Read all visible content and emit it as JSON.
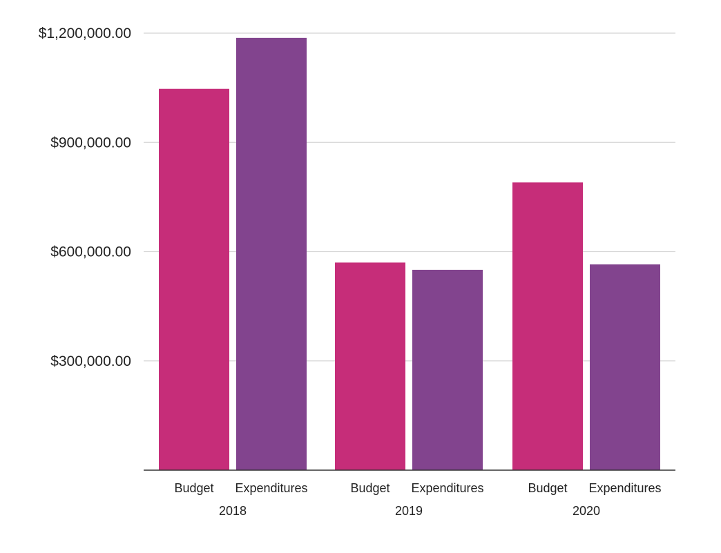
{
  "chart_data": {
    "type": "bar",
    "groups": [
      "2018",
      "2019",
      "2020"
    ],
    "categories": [
      "Budget",
      "Expenditures"
    ],
    "series": [
      {
        "group": "2018",
        "values": [
          1047000,
          1187000
        ]
      },
      {
        "group": "2019",
        "values": [
          570000,
          550000
        ]
      },
      {
        "group": "2020",
        "values": [
          790000,
          565000
        ]
      }
    ],
    "ylim": [
      0,
      1200000
    ],
    "yticks": [
      300000,
      600000,
      900000,
      1200000
    ],
    "ytick_labels": [
      "$300,000.00",
      "$600,000.00",
      "$900,000.00",
      "$1,200,000.00"
    ],
    "grid": true,
    "legend": "none",
    "title": "",
    "xlabel": "",
    "ylabel": "",
    "colors": {
      "Budget": "#c62d79",
      "Expenditures": "#82448e",
      "grid": "#d4d4d4",
      "axis": "#333333"
    }
  }
}
